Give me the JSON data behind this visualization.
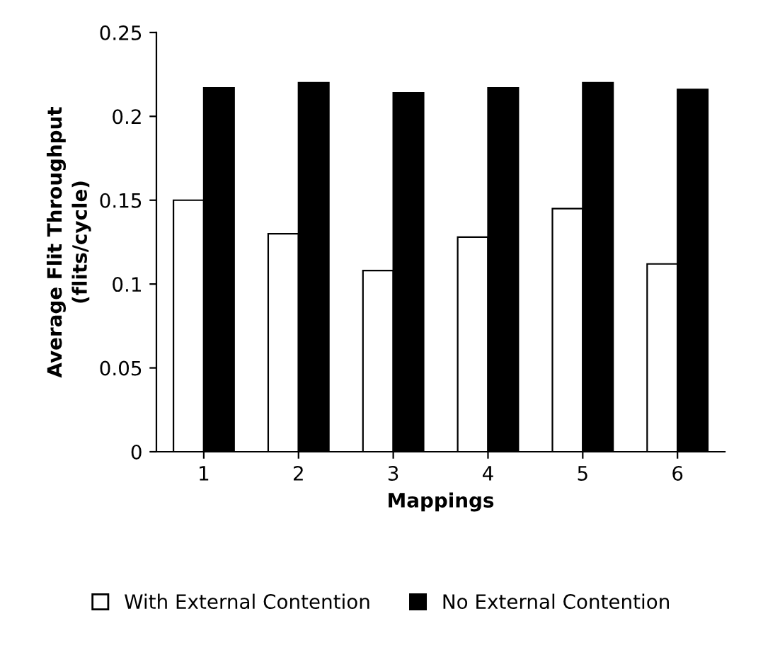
{
  "chart_data": {
    "type": "bar",
    "xlabel": "Mappings",
    "ylabel": "Average Flit Throughput\n(flits/cycle)",
    "categories": [
      "1",
      "2",
      "3",
      "4",
      "5",
      "6"
    ],
    "series": [
      {
        "name": "With External Contention",
        "color": "#ffffff",
        "values": [
          0.15,
          0.13,
          0.108,
          0.128,
          0.145,
          0.112
        ]
      },
      {
        "name": "No External Contention",
        "color": "#000000",
        "values": [
          0.217,
          0.22,
          0.214,
          0.217,
          0.22,
          0.216
        ]
      }
    ],
    "ylim": [
      0,
      0.25
    ],
    "yticks": [
      0,
      0.05,
      0.1,
      0.15,
      0.2,
      0.25
    ],
    "grid": false,
    "legend": "bottom"
  }
}
